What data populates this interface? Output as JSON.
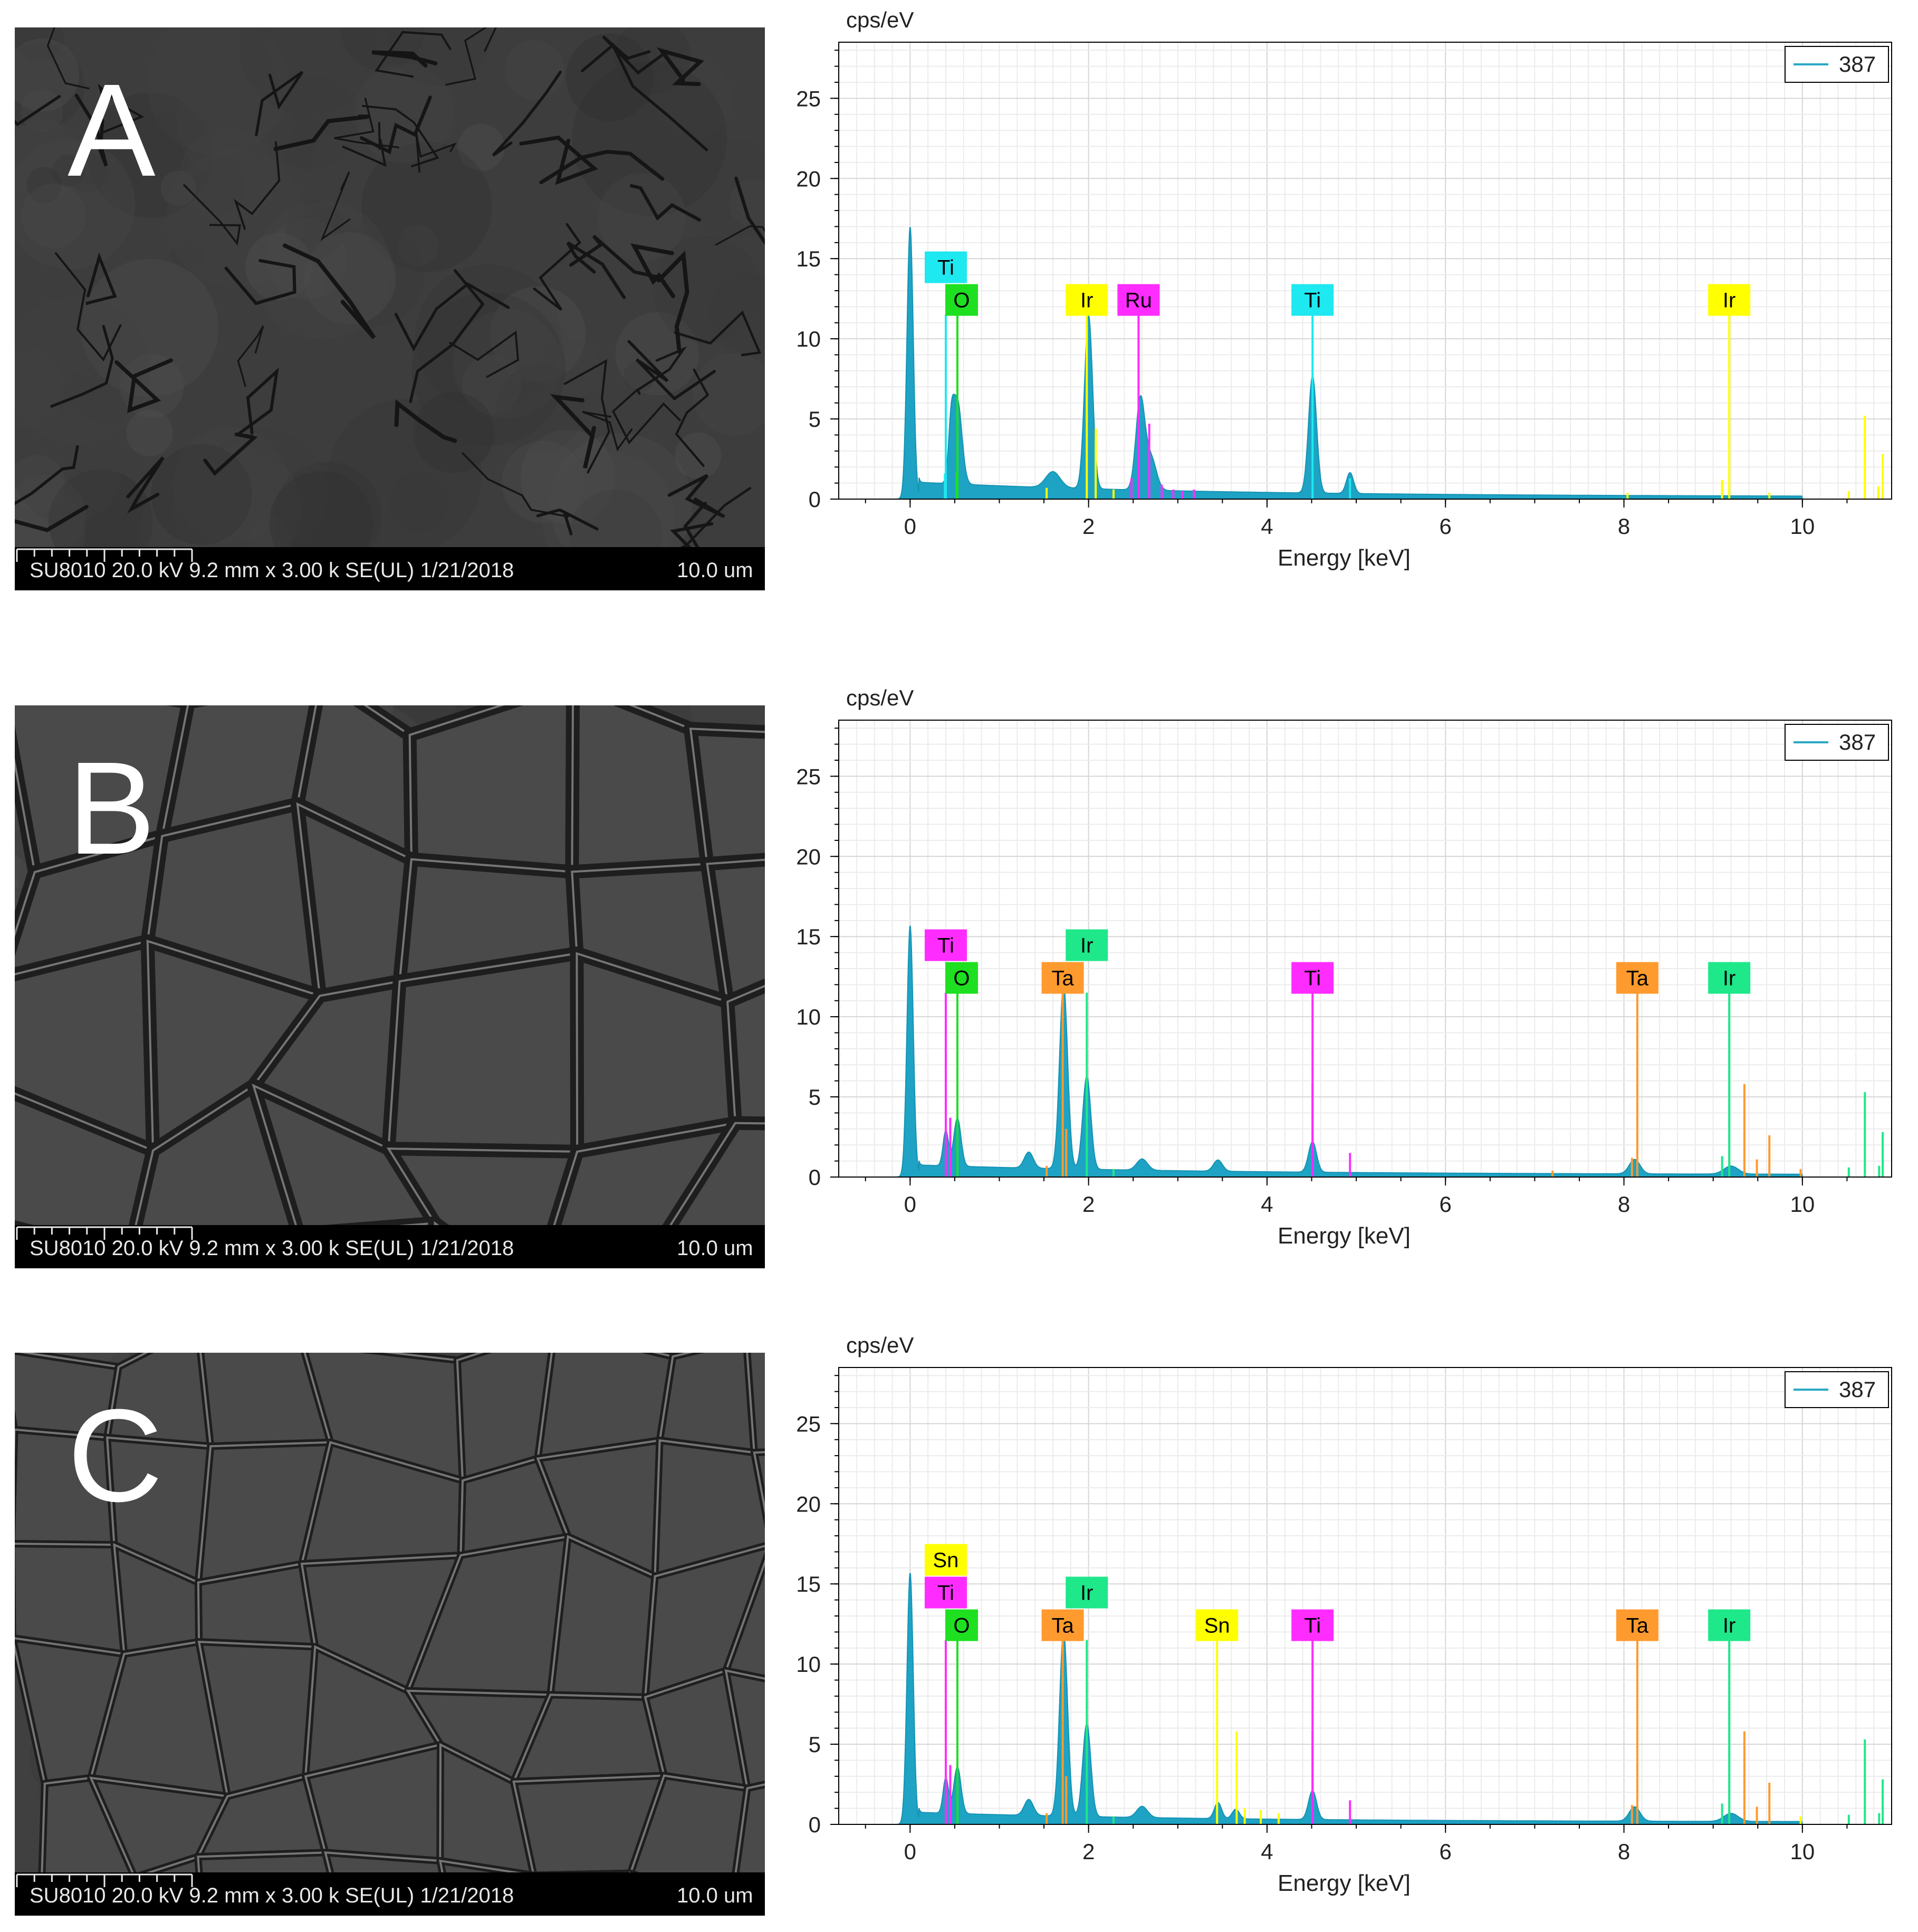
{
  "panels": [
    {
      "letter": "A",
      "meta": "SU8010 20.0 kV 9.2 mm x 3.00 k SE(UL) 1/21/2018",
      "scale": "10.0 um",
      "texture": "bumpy",
      "chart_data": {
        "type": "area",
        "ylabel": "cps/eV",
        "xlabel": "Energy [keV]",
        "xlim": [
          -0.8,
          11.0
        ],
        "ylim": [
          0,
          28.5
        ],
        "xticks": [
          0,
          2,
          4,
          6,
          8,
          10
        ],
        "yticks": [
          0,
          5,
          10,
          15,
          20,
          25
        ],
        "grid": true,
        "legend": {
          "position": "top-right",
          "entries": [
            {
              "name": "387",
              "color": "#2aa9c4"
            }
          ]
        },
        "fill_color": "#1ea3c4",
        "peaks": [
          {
            "x": 0.0,
            "y": 17.0,
            "w": 0.035
          },
          {
            "x": 0.46,
            "y": 3.0,
            "w": 0.03
          },
          {
            "x": 0.53,
            "y": 5.2,
            "w": 0.05
          },
          {
            "x": 1.6,
            "y": 1.0,
            "w": 0.08
          },
          {
            "x": 2.0,
            "y": 10.8,
            "w": 0.045
          },
          {
            "x": 2.58,
            "y": 5.6,
            "w": 0.05
          },
          {
            "x": 2.7,
            "y": 2.0,
            "w": 0.06
          },
          {
            "x": 4.51,
            "y": 7.3,
            "w": 0.045
          },
          {
            "x": 4.93,
            "y": 1.3,
            "w": 0.04
          }
        ],
        "background": 0.9,
        "markers": [
          {
            "label": "Ti",
            "x": 0.4,
            "row": 2,
            "color": "#1ee8f0",
            "height": 11.5
          },
          {
            "label": "O",
            "x": 0.53,
            "row": 1,
            "color": "#1ee020",
            "height": 11.5
          },
          {
            "label": "Ir",
            "x": 1.98,
            "row": 1,
            "color": "#ffff00",
            "height": 11.5
          },
          {
            "label": "Ru",
            "x": 2.56,
            "row": 1,
            "color": "#ff2cff",
            "height": 11.5
          },
          {
            "label": "Ti",
            "x": 4.51,
            "row": 1,
            "color": "#1ee8f0",
            "height": 11.5
          },
          {
            "label": "Ir",
            "x": 9.18,
            "row": 1,
            "color": "#ffff00",
            "height": 11.5
          }
        ],
        "lines": [
          {
            "x": 0.39,
            "y": 1.6,
            "color": "#1ee8f0"
          },
          {
            "x": 0.52,
            "y": 1.7,
            "color": "#1ee020"
          },
          {
            "x": 1.53,
            "y": 0.7,
            "color": "#ffff00"
          },
          {
            "x": 2.08,
            "y": 4.4,
            "color": "#ffff00"
          },
          {
            "x": 2.28,
            "y": 0.6,
            "color": "#ffff00"
          },
          {
            "x": 2.48,
            "y": 1.3,
            "color": "#ff2cff"
          },
          {
            "x": 2.68,
            "y": 4.7,
            "color": "#ff2cff"
          },
          {
            "x": 2.82,
            "y": 0.9,
            "color": "#ff2cff"
          },
          {
            "x": 2.95,
            "y": 0.6,
            "color": "#ff2cff"
          },
          {
            "x": 3.05,
            "y": 0.5,
            "color": "#ff2cff"
          },
          {
            "x": 3.18,
            "y": 0.6,
            "color": "#ff2cff"
          },
          {
            "x": 4.93,
            "y": 1.3,
            "color": "#1ee8f0"
          },
          {
            "x": 8.04,
            "y": 0.4,
            "color": "#ffff00"
          },
          {
            "x": 9.1,
            "y": 1.2,
            "color": "#ffff00"
          },
          {
            "x": 9.63,
            "y": 0.4,
            "color": "#ffff00"
          },
          {
            "x": 10.52,
            "y": 0.5,
            "color": "#ffff00"
          },
          {
            "x": 10.7,
            "y": 5.2,
            "color": "#ffff00"
          },
          {
            "x": 10.85,
            "y": 0.8,
            "color": "#ffff00"
          },
          {
            "x": 10.9,
            "y": 2.8,
            "color": "#ffff00"
          }
        ]
      }
    },
    {
      "letter": "B",
      "meta": "SU8010 20.0 kV 9.2 mm x 3.00 k SE(UL) 1/21/2018",
      "scale": "10.0 um",
      "texture": "cracked",
      "chart_data": {
        "type": "area",
        "ylabel": "cps/eV",
        "xlabel": "Energy [keV]",
        "xlim": [
          -0.8,
          11.0
        ],
        "ylim": [
          0,
          28.5
        ],
        "xticks": [
          0,
          2,
          4,
          6,
          8,
          10
        ],
        "yticks": [
          0,
          5,
          10,
          15,
          20,
          25
        ],
        "grid": true,
        "legend": {
          "position": "top-right",
          "entries": [
            {
              "name": "387",
              "color": "#2aa9c4"
            }
          ]
        },
        "fill_color": "#1ea3c4",
        "peaks": [
          {
            "x": 0.0,
            "y": 15.7,
            "w": 0.035
          },
          {
            "x": 0.4,
            "y": 2.2,
            "w": 0.03
          },
          {
            "x": 0.53,
            "y": 3.0,
            "w": 0.04
          },
          {
            "x": 1.33,
            "y": 1.0,
            "w": 0.05
          },
          {
            "x": 1.72,
            "y": 11.5,
            "w": 0.045
          },
          {
            "x": 1.98,
            "y": 5.8,
            "w": 0.045
          },
          {
            "x": 2.6,
            "y": 0.7,
            "w": 0.06
          },
          {
            "x": 3.45,
            "y": 0.7,
            "w": 0.05
          },
          {
            "x": 4.51,
            "y": 1.9,
            "w": 0.045
          },
          {
            "x": 8.12,
            "y": 0.9,
            "w": 0.06
          },
          {
            "x": 9.2,
            "y": 0.5,
            "w": 0.08
          }
        ],
        "background": 0.6,
        "markers": [
          {
            "label": "Ti",
            "x": 0.4,
            "row": 2,
            "color": "#ff2cff",
            "height": 11.5
          },
          {
            "label": "O",
            "x": 0.53,
            "row": 1,
            "color": "#1ee020",
            "height": 11.5
          },
          {
            "label": "Ta",
            "x": 1.71,
            "row": 1,
            "color": "#ff9a2e",
            "height": 11.5
          },
          {
            "label": "Ir",
            "x": 1.98,
            "row": 2,
            "color": "#1ee88a",
            "height": 11.5
          },
          {
            "label": "Ti",
            "x": 4.51,
            "row": 1,
            "color": "#ff2cff",
            "height": 11.5
          },
          {
            "label": "Ta",
            "x": 8.15,
            "row": 1,
            "color": "#ff9a2e",
            "height": 11.5
          },
          {
            "label": "Ir",
            "x": 9.18,
            "row": 1,
            "color": "#1ee88a",
            "height": 11.5
          }
        ],
        "lines": [
          {
            "x": 0.45,
            "y": 3.7,
            "color": "#ff2cff"
          },
          {
            "x": 1.53,
            "y": 0.7,
            "color": "#ff9a2e"
          },
          {
            "x": 1.75,
            "y": 3.0,
            "color": "#ff9a2e"
          },
          {
            "x": 2.28,
            "y": 0.5,
            "color": "#1ee88a"
          },
          {
            "x": 4.51,
            "y": 5.8,
            "color": "#ff2cff"
          },
          {
            "x": 4.93,
            "y": 1.5,
            "color": "#ff2cff"
          },
          {
            "x": 7.2,
            "y": 0.4,
            "color": "#ff9a2e"
          },
          {
            "x": 8.09,
            "y": 1.2,
            "color": "#ff9a2e"
          },
          {
            "x": 9.1,
            "y": 1.3,
            "color": "#1ee88a"
          },
          {
            "x": 9.35,
            "y": 5.8,
            "color": "#ff9a2e"
          },
          {
            "x": 9.49,
            "y": 1.1,
            "color": "#ff9a2e"
          },
          {
            "x": 9.63,
            "y": 2.6,
            "color": "#ff9a2e"
          },
          {
            "x": 9.98,
            "y": 0.5,
            "color": "#ff9a2e"
          },
          {
            "x": 10.52,
            "y": 0.6,
            "color": "#1ee88a"
          },
          {
            "x": 10.7,
            "y": 5.3,
            "color": "#1ee88a"
          },
          {
            "x": 10.86,
            "y": 0.7,
            "color": "#1ee88a"
          },
          {
            "x": 10.9,
            "y": 2.8,
            "color": "#1ee88a"
          }
        ]
      }
    },
    {
      "letter": "C",
      "meta": "SU8010 20.0 kV 9.2 mm x 3.00 k SE(UL) 1/21/2018",
      "scale": "10.0 um",
      "texture": "fine-cracked",
      "chart_data": {
        "type": "area",
        "ylabel": "cps/eV",
        "xlabel": "Energy [keV]",
        "xlim": [
          -0.8,
          11.0
        ],
        "ylim": [
          0,
          28.5
        ],
        "xticks": [
          0,
          2,
          4,
          6,
          8,
          10
        ],
        "yticks": [
          0,
          5,
          10,
          15,
          20,
          25
        ],
        "grid": true,
        "legend": {
          "position": "top-right",
          "entries": [
            {
              "name": "387",
              "color": "#2aa9c4"
            }
          ]
        },
        "fill_color": "#1ea3c4",
        "peaks": [
          {
            "x": 0.0,
            "y": 15.7,
            "w": 0.035
          },
          {
            "x": 0.4,
            "y": 2.2,
            "w": 0.03
          },
          {
            "x": 0.53,
            "y": 2.9,
            "w": 0.04
          },
          {
            "x": 1.33,
            "y": 1.0,
            "w": 0.05
          },
          {
            "x": 1.72,
            "y": 11.5,
            "w": 0.045
          },
          {
            "x": 1.98,
            "y": 5.8,
            "w": 0.045
          },
          {
            "x": 2.6,
            "y": 0.7,
            "w": 0.06
          },
          {
            "x": 3.45,
            "y": 1.0,
            "w": 0.04
          },
          {
            "x": 3.65,
            "y": 0.6,
            "w": 0.04
          },
          {
            "x": 4.51,
            "y": 1.8,
            "w": 0.045
          },
          {
            "x": 8.12,
            "y": 0.9,
            "w": 0.06
          },
          {
            "x": 9.2,
            "y": 0.5,
            "w": 0.08
          }
        ],
        "background": 0.6,
        "markers": [
          {
            "label": "Sn",
            "x": 0.4,
            "row": 3,
            "color": "#ffff00",
            "height": 11.5
          },
          {
            "label": "Ti",
            "x": 0.4,
            "row": 2,
            "color": "#ff2cff",
            "height": 11.5
          },
          {
            "label": "O",
            "x": 0.53,
            "row": 1,
            "color": "#1ee020",
            "height": 11.5
          },
          {
            "label": "Ta",
            "x": 1.71,
            "row": 1,
            "color": "#ff9a2e",
            "height": 11.5
          },
          {
            "label": "Ir",
            "x": 1.98,
            "row": 2,
            "color": "#1ee88a",
            "height": 11.5
          },
          {
            "label": "Sn",
            "x": 3.44,
            "row": 1,
            "color": "#ffff00",
            "height": 11.5
          },
          {
            "label": "Ti",
            "x": 4.51,
            "row": 1,
            "color": "#ff2cff",
            "height": 11.5
          },
          {
            "label": "Ta",
            "x": 8.15,
            "row": 1,
            "color": "#ff9a2e",
            "height": 11.5
          },
          {
            "label": "Ir",
            "x": 9.18,
            "row": 1,
            "color": "#1ee88a",
            "height": 11.5
          }
        ],
        "lines": [
          {
            "x": 0.45,
            "y": 3.7,
            "color": "#ff2cff"
          },
          {
            "x": 1.53,
            "y": 0.7,
            "color": "#ff9a2e"
          },
          {
            "x": 1.75,
            "y": 3.0,
            "color": "#ff9a2e"
          },
          {
            "x": 2.28,
            "y": 0.5,
            "color": "#1ee88a"
          },
          {
            "x": 3.66,
            "y": 5.8,
            "color": "#ffff00"
          },
          {
            "x": 3.75,
            "y": 1.0,
            "color": "#ffff00"
          },
          {
            "x": 3.93,
            "y": 0.9,
            "color": "#ffff00"
          },
          {
            "x": 4.13,
            "y": 0.7,
            "color": "#ffff00"
          },
          {
            "x": 4.51,
            "y": 5.8,
            "color": "#ff2cff"
          },
          {
            "x": 4.93,
            "y": 1.5,
            "color": "#ff2cff"
          },
          {
            "x": 8.09,
            "y": 1.2,
            "color": "#ff9a2e"
          },
          {
            "x": 9.1,
            "y": 1.3,
            "color": "#1ee88a"
          },
          {
            "x": 9.35,
            "y": 5.8,
            "color": "#ff9a2e"
          },
          {
            "x": 9.49,
            "y": 1.1,
            "color": "#ff9a2e"
          },
          {
            "x": 9.63,
            "y": 2.6,
            "color": "#ff9a2e"
          },
          {
            "x": 9.98,
            "y": 0.5,
            "color": "#ffff00"
          },
          {
            "x": 10.52,
            "y": 0.6,
            "color": "#1ee88a"
          },
          {
            "x": 10.7,
            "y": 5.3,
            "color": "#1ee88a"
          },
          {
            "x": 10.86,
            "y": 0.7,
            "color": "#1ee88a"
          },
          {
            "x": 10.9,
            "y": 2.8,
            "color": "#1ee88a"
          }
        ]
      }
    }
  ]
}
